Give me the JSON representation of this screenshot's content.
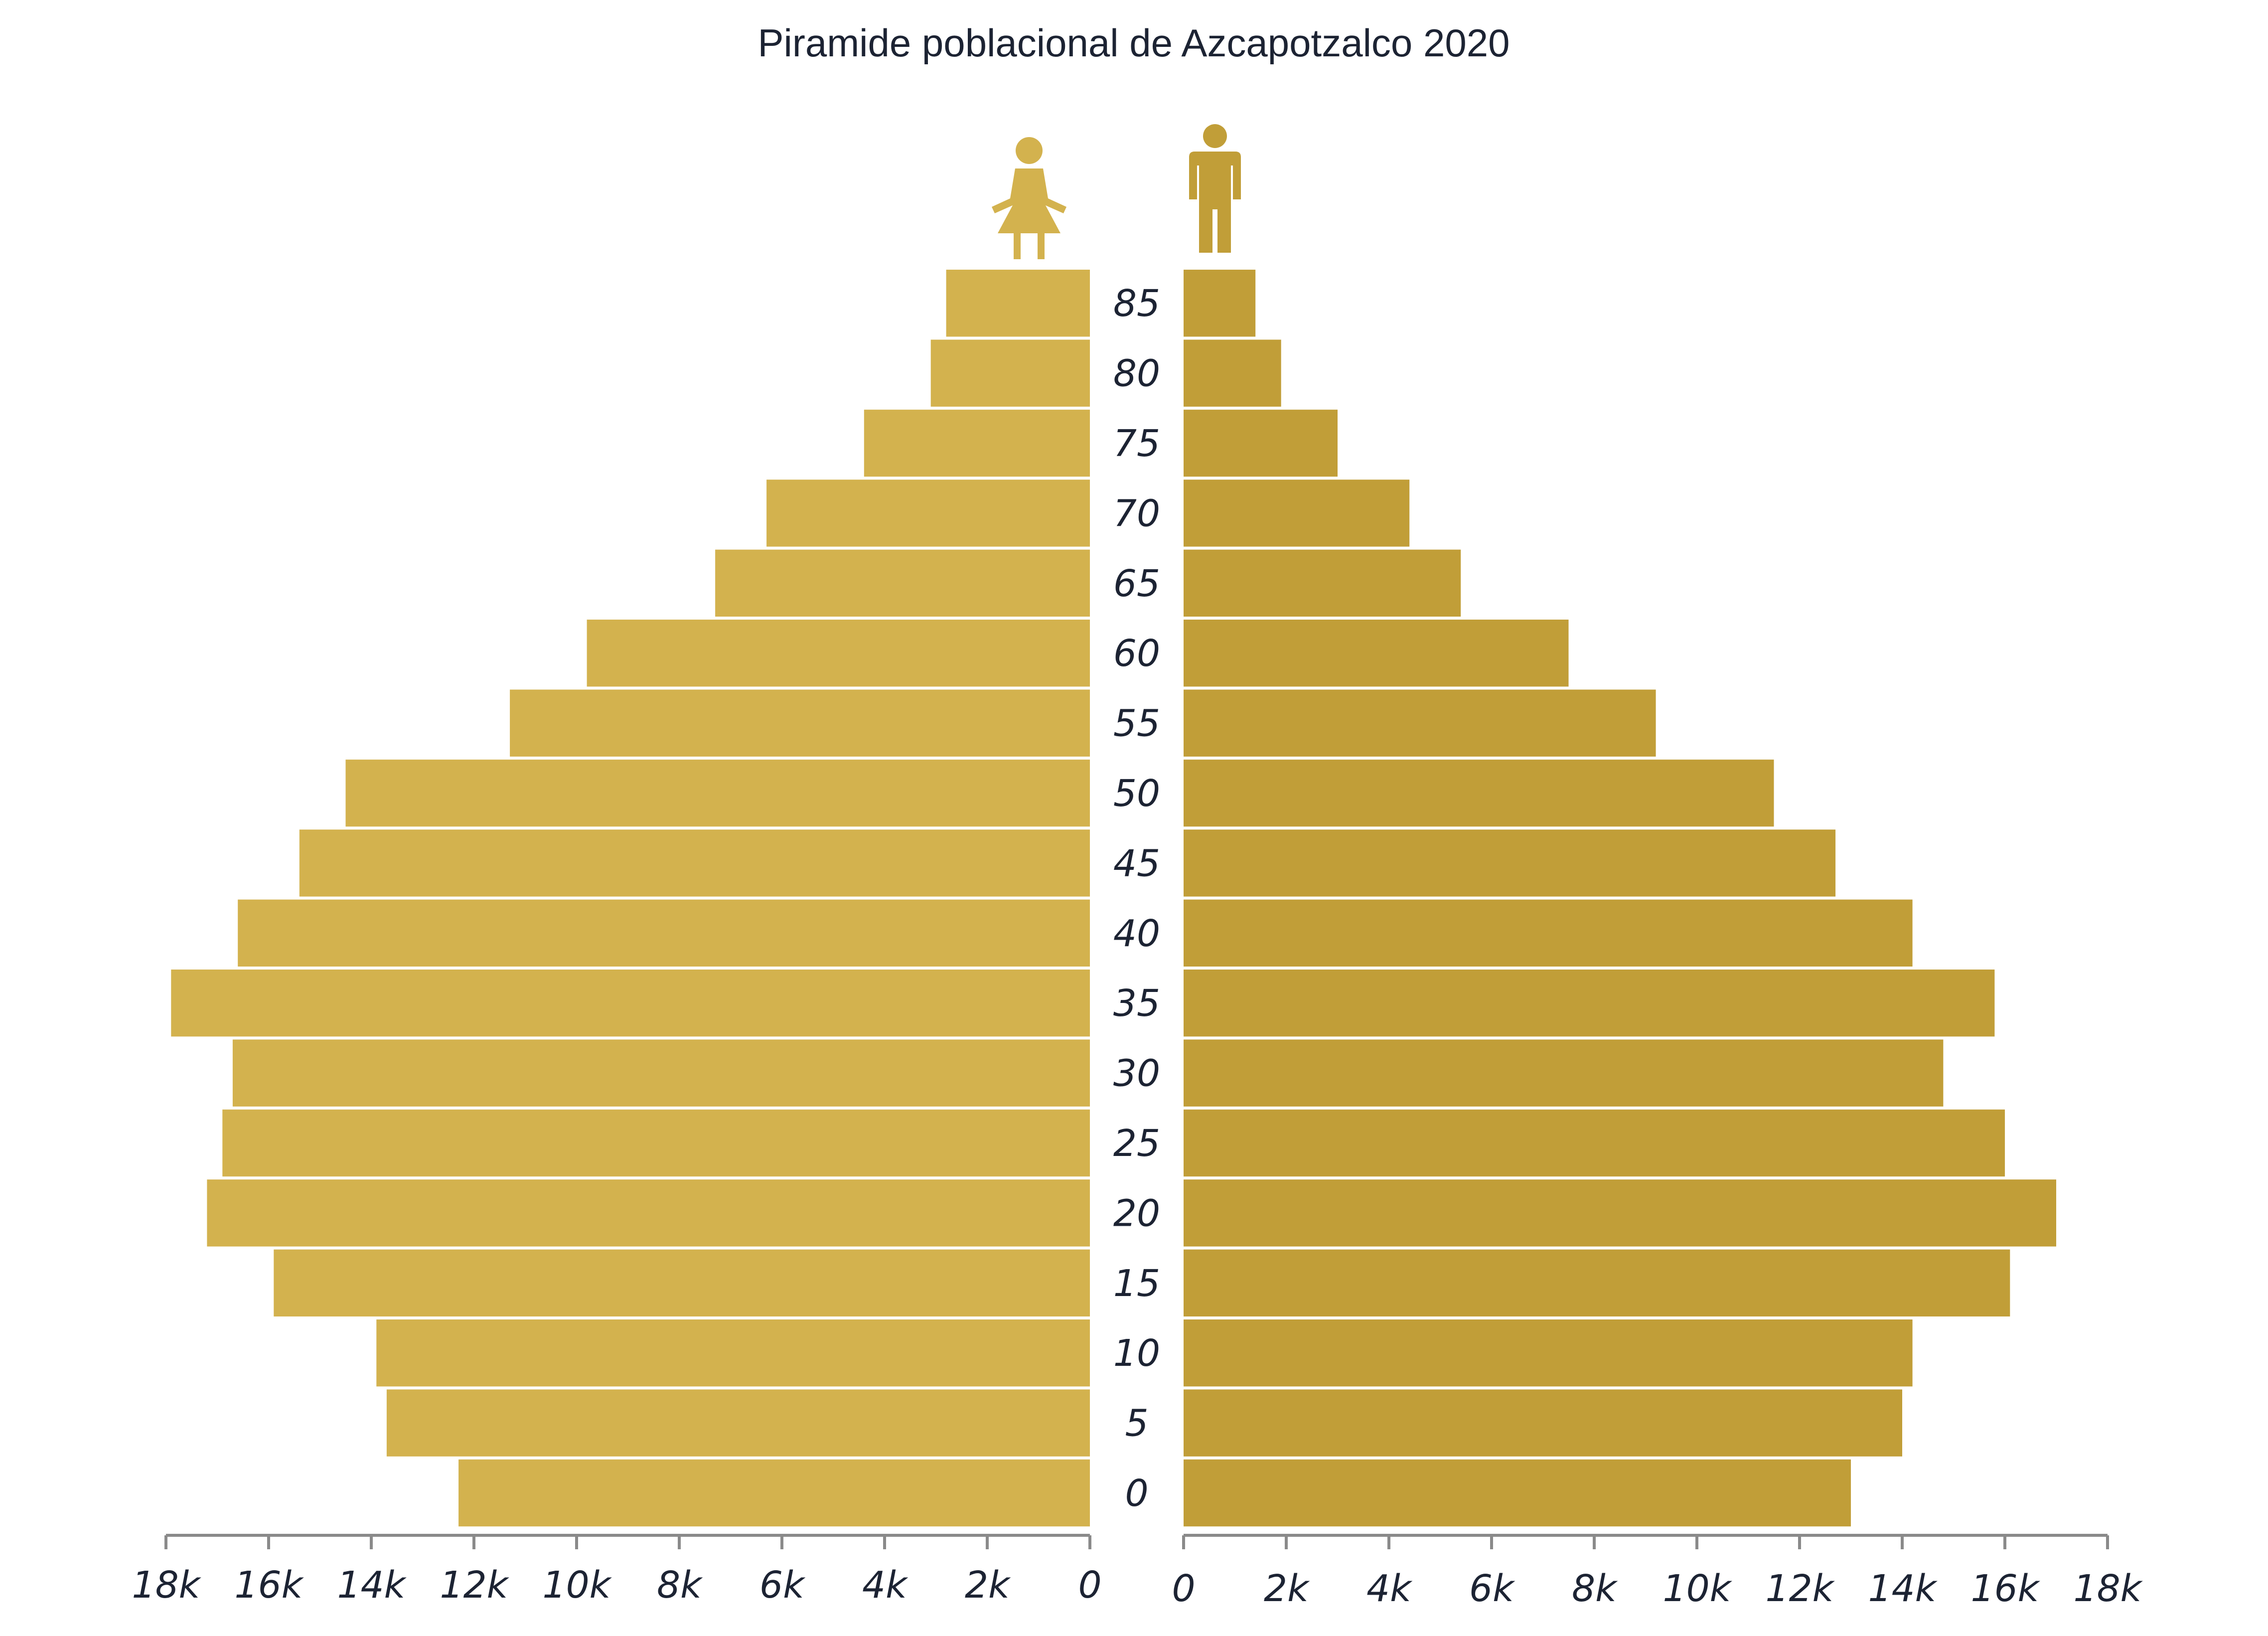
{
  "chart_data": {
    "type": "bar",
    "orientation": "population-pyramid",
    "title": "Piramide poblacional de Azcapotzalco 2020",
    "categories": [
      "85",
      "80",
      "75",
      "70",
      "65",
      "60",
      "55",
      "50",
      "45",
      "40",
      "35",
      "30",
      "25",
      "20",
      "15",
      "10",
      "5",
      "0"
    ],
    "series": [
      {
        "side": "left",
        "icon": "female-icon",
        "color": "#d3b24e",
        "values": [
          2800,
          3100,
          4400,
          6300,
          7300,
          9800,
          11300,
          14500,
          15400,
          16600,
          17900,
          16700,
          16900,
          17200,
          15900,
          13900,
          13700,
          12300
        ]
      },
      {
        "side": "right",
        "icon": "male-icon",
        "color": "#c19e38",
        "values": [
          1400,
          1900,
          3000,
          4400,
          5400,
          7500,
          9200,
          11500,
          12700,
          14200,
          15800,
          14800,
          16000,
          17000,
          16100,
          14200,
          14000,
          13000
        ]
      }
    ],
    "xlim": [
      0,
      18000
    ],
    "xticks_left": [
      "18k",
      "16k",
      "14k",
      "12k",
      "10k",
      "8k",
      "6k",
      "4k",
      "2k",
      "0"
    ],
    "xticks_right": [
      "0",
      "2k",
      "4k",
      "6k",
      "8k",
      "10k",
      "12k",
      "14k",
      "16k",
      "18k"
    ],
    "grid": false,
    "legend": "icons above bars"
  }
}
